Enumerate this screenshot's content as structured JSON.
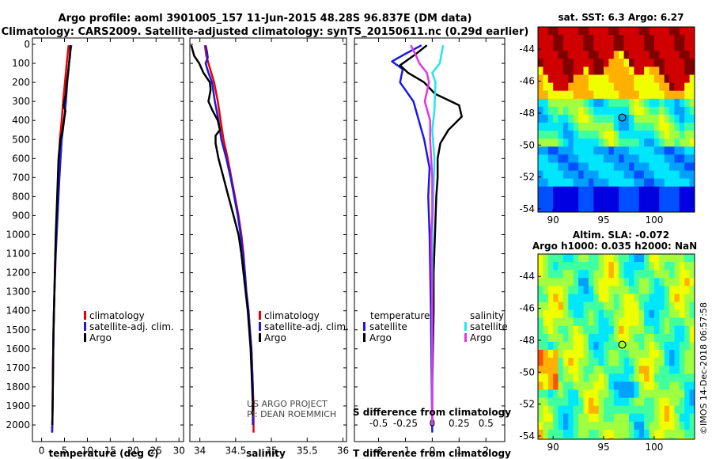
{
  "header": {
    "title_line1": "Argo profile: aoml 3901005_157 11-Jun-2015 48.28S 96.837E (DM data)",
    "title_line2": "Climatology: CARS2009. Satellite-adjusted climatology: synTS_20150611.nc (0.29d earlier)"
  },
  "colors": {
    "climatology": "#ee0000",
    "satellite": "#1a1adf",
    "argo": "#000000",
    "satellite_salinity": "#22e6ee",
    "argo_salinity": "#e632e6"
  },
  "chart_data": [
    {
      "type": "line",
      "title": "",
      "xlabel": "temperature (deg C)",
      "ylabel": "",
      "xlim": [
        -2,
        31
      ],
      "ylim": [
        2080,
        0
      ],
      "xticks": [
        0,
        5,
        10,
        15,
        20,
        25,
        30
      ],
      "yticks": [
        0,
        100,
        200,
        300,
        400,
        500,
        600,
        700,
        800,
        900,
        1000,
        1100,
        1200,
        1300,
        1400,
        1500,
        1600,
        1700,
        1800,
        1900,
        2000
      ],
      "legend": [
        "climatology",
        "satellite-adj. clim.",
        "Argo"
      ],
      "series": [
        {
          "name": "climatology",
          "color": "#ee0000",
          "points": [
            [
              5.9,
              5
            ],
            [
              5.7,
              50
            ],
            [
              5.5,
              100
            ],
            [
              5.1,
              200
            ],
            [
              4.7,
              300
            ],
            [
              4.4,
              400
            ],
            [
              4.0,
              500
            ],
            [
              3.6,
              700
            ],
            [
              3.3,
              900
            ],
            [
              3.0,
              1100
            ],
            [
              2.8,
              1300
            ],
            [
              2.6,
              1500
            ],
            [
              2.5,
              1700
            ],
            [
              2.4,
              1900
            ],
            [
              2.3,
              2040
            ]
          ]
        },
        {
          "name": "satellite-adj. clim.",
          "color": "#1a1adf",
          "points": [
            [
              6.5,
              5
            ],
            [
              6.2,
              50
            ],
            [
              6.0,
              100
            ],
            [
              5.6,
              200
            ],
            [
              5.3,
              300
            ],
            [
              4.9,
              400
            ],
            [
              4.4,
              500
            ],
            [
              3.9,
              700
            ],
            [
              3.5,
              900
            ],
            [
              3.1,
              1100
            ],
            [
              2.8,
              1300
            ],
            [
              2.6,
              1500
            ],
            [
              2.5,
              1700
            ],
            [
              2.4,
              1900
            ],
            [
              2.3,
              2040
            ]
          ]
        },
        {
          "name": "Argo",
          "color": "#000000",
          "points": [
            [
              6.3,
              5
            ],
            [
              6.2,
              60
            ],
            [
              6.0,
              100
            ],
            [
              5.8,
              150
            ],
            [
              5.5,
              200
            ],
            [
              5.3,
              260
            ],
            [
              4.8,
              320
            ],
            [
              5.2,
              350
            ],
            [
              5.0,
              380
            ],
            [
              4.6,
              450
            ],
            [
              4.1,
              500
            ],
            [
              3.7,
              600
            ],
            [
              3.4,
              800
            ],
            [
              3.1,
              1000
            ],
            [
              2.9,
              1200
            ],
            [
              2.7,
              1400
            ],
            [
              2.55,
              1600
            ],
            [
              2.45,
              1800
            ],
            [
              2.35,
              2000
            ]
          ]
        }
      ]
    },
    {
      "type": "line",
      "title": "",
      "xlabel": "salinity",
      "ylabel": "",
      "xlim": [
        33.86,
        36.05
      ],
      "ylim": [
        2080,
        0
      ],
      "xticks": [
        34,
        34.5,
        35,
        35.5,
        36
      ],
      "legend": [
        "climatology",
        "satellite-adj. clim.",
        "Argo"
      ],
      "series": [
        {
          "name": "climatology",
          "color": "#ee0000",
          "points": [
            [
              34.07,
              5
            ],
            [
              34.09,
              60
            ],
            [
              34.12,
              100
            ],
            [
              34.16,
              150
            ],
            [
              34.2,
              200
            ],
            [
              34.25,
              300
            ],
            [
              34.29,
              400
            ],
            [
              34.33,
              500
            ],
            [
              34.39,
              600
            ],
            [
              34.44,
              700
            ],
            [
              34.49,
              800
            ],
            [
              34.54,
              900
            ],
            [
              34.58,
              1000
            ],
            [
              34.61,
              1100
            ],
            [
              34.63,
              1200
            ],
            [
              34.65,
              1300
            ],
            [
              34.68,
              1400
            ],
            [
              34.7,
              1500
            ],
            [
              34.72,
              1600
            ],
            [
              34.73,
              1700
            ],
            [
              34.74,
              1800
            ],
            [
              34.75,
              1900
            ],
            [
              34.75,
              2040
            ]
          ]
        },
        {
          "name": "satellite-adj. clim.",
          "color": "#1a1adf",
          "points": [
            [
              34.08,
              5
            ],
            [
              34.1,
              40
            ],
            [
              34.11,
              70
            ],
            [
              34.08,
              100
            ],
            [
              34.12,
              150
            ],
            [
              34.17,
              200
            ],
            [
              34.21,
              300
            ],
            [
              34.26,
              400
            ],
            [
              34.3,
              500
            ],
            [
              34.37,
              600
            ],
            [
              34.43,
              700
            ],
            [
              34.48,
              800
            ],
            [
              34.53,
              900
            ],
            [
              34.57,
              1000
            ],
            [
              34.6,
              1100
            ],
            [
              34.63,
              1200
            ],
            [
              34.65,
              1300
            ],
            [
              34.68,
              1400
            ],
            [
              34.7,
              1500
            ],
            [
              34.72,
              1600
            ],
            [
              34.73,
              1700
            ],
            [
              34.74,
              1800
            ],
            [
              34.74,
              1900
            ],
            [
              34.74,
              2000
            ]
          ]
        },
        {
          "name": "Argo",
          "color": "#000000",
          "points": [
            [
              33.88,
              5
            ],
            [
              33.92,
              60
            ],
            [
              33.99,
              100
            ],
            [
              34.05,
              150
            ],
            [
              34.14,
              200
            ],
            [
              34.15,
              240
            ],
            [
              34.12,
              300
            ],
            [
              34.18,
              350
            ],
            [
              34.25,
              400
            ],
            [
              34.28,
              450
            ],
            [
              34.22,
              480
            ],
            [
              34.22,
              520
            ],
            [
              34.26,
              600
            ],
            [
              34.33,
              700
            ],
            [
              34.4,
              800
            ],
            [
              34.47,
              900
            ],
            [
              34.54,
              1000
            ],
            [
              34.58,
              1100
            ],
            [
              34.61,
              1200
            ],
            [
              34.64,
              1300
            ],
            [
              34.67,
              1400
            ],
            [
              34.69,
              1500
            ],
            [
              34.71,
              1600
            ],
            [
              34.72,
              1700
            ],
            [
              34.73,
              1800
            ],
            [
              34.74,
              1900
            ],
            [
              34.74,
              1950
            ]
          ]
        }
      ],
      "annotations": [
        "US ARGO PROJECT",
        "PI: DEAN ROEMMICH"
      ]
    },
    {
      "type": "line",
      "title": "",
      "xlabel": "T difference from climatology",
      "xlabel_top": "S difference from climatology",
      "ylabel": "",
      "xlim": [
        -2.9,
        2.7
      ],
      "xlim_top": [
        -0.725,
        0.675
      ],
      "ylim": [
        2080,
        0
      ],
      "xticks": [
        -2,
        -1,
        0,
        1,
        2
      ],
      "xticks_top": [
        "-0.5",
        "-0.25",
        "0",
        "0.25",
        "0.5"
      ],
      "xticks_top_values": [
        -0.5,
        -0.25,
        0,
        0.25,
        0.5
      ],
      "legend_temperature_title": "temperature",
      "legend_salinity_title": "salinity",
      "legend": [
        "satellite",
        "Argo"
      ],
      "series": [
        {
          "name": "temperature satellite",
          "color": "#1a1adf",
          "axis": "T",
          "points": [
            [
              -0.4,
              5
            ],
            [
              -1.0,
              50
            ],
            [
              -1.5,
              90
            ],
            [
              -1.1,
              130
            ],
            [
              -1.2,
              200
            ],
            [
              -0.7,
              300
            ],
            [
              -0.5,
              400
            ],
            [
              -0.3,
              500
            ],
            [
              -0.1,
              650
            ],
            [
              -0.15,
              800
            ],
            [
              -0.1,
              1000
            ],
            [
              -0.05,
              1400
            ],
            [
              0,
              2040
            ]
          ]
        },
        {
          "name": "temperature Argo",
          "color": "#000000",
          "axis": "T",
          "points": [
            [
              -0.2,
              5
            ],
            [
              -0.6,
              50
            ],
            [
              -1.2,
              110
            ],
            [
              -0.9,
              150
            ],
            [
              -0.3,
              200
            ],
            [
              0.1,
              260
            ],
            [
              1.0,
              320
            ],
            [
              1.1,
              380
            ],
            [
              0.6,
              450
            ],
            [
              0.3,
              520
            ],
            [
              0.2,
              600
            ],
            [
              0.2,
              700
            ],
            [
              0.15,
              800
            ],
            [
              0.1,
              1000
            ],
            [
              0.05,
              1200
            ],
            [
              0.05,
              1400
            ],
            [
              0,
              1800
            ],
            [
              0,
              2000
            ]
          ]
        },
        {
          "name": "salinity satellite",
          "color": "#22e6ee",
          "axis": "S",
          "points": [
            [
              0.1,
              5
            ],
            [
              0.07,
              100
            ],
            [
              0.0,
              150
            ],
            [
              0.03,
              200
            ],
            [
              0.02,
              350
            ],
            [
              0.0,
              450
            ],
            [
              0.02,
              600
            ],
            [
              0.01,
              800
            ],
            [
              0.0,
              1000
            ],
            [
              0.0,
              1400
            ],
            [
              0.0,
              2000
            ]
          ]
        },
        {
          "name": "salinity Argo",
          "color": "#e632e6",
          "axis": "S",
          "points": [
            [
              -0.2,
              5
            ],
            [
              -0.15,
              60
            ],
            [
              -0.12,
              100
            ],
            [
              -0.05,
              150
            ],
            [
              -0.03,
              200
            ],
            [
              -0.05,
              250
            ],
            [
              -0.07,
              300
            ],
            [
              -0.02,
              400
            ],
            [
              -0.02,
              500
            ],
            [
              -0.01,
              600
            ],
            [
              0.0,
              700
            ],
            [
              0.0,
              900
            ],
            [
              -0.01,
              1000
            ],
            [
              0.0,
              1400
            ],
            [
              0.0,
              1800
            ],
            [
              0.0,
              2000
            ]
          ]
        }
      ]
    },
    {
      "type": "heatmap",
      "title": "sat. SST: 6.3 Argo: 6.27",
      "xlim": [
        88.5,
        104
      ],
      "ylim": [
        -54.2,
        -42.6
      ],
      "xticks": [
        90,
        95,
        100
      ],
      "yticks": [
        -44,
        -46,
        -48,
        -50,
        -52,
        -54
      ],
      "marker": {
        "lon": 96.837,
        "lat": -48.28
      }
    },
    {
      "type": "heatmap",
      "title": "Altim. SLA: -0.072",
      "subtitle": "Argo h1000: 0.035 h2000: NaN",
      "xlim": [
        88.5,
        104
      ],
      "ylim": [
        -54.2,
        -42.6
      ],
      "xticks": [
        90,
        95,
        100
      ],
      "yticks": [
        -44,
        -46,
        -48,
        -50,
        -52,
        -54
      ],
      "marker": {
        "lon": 96.837,
        "lat": -48.28
      }
    }
  ],
  "footer": {
    "credit": "©IMOS 14-Dec-2018 06:57:58"
  }
}
